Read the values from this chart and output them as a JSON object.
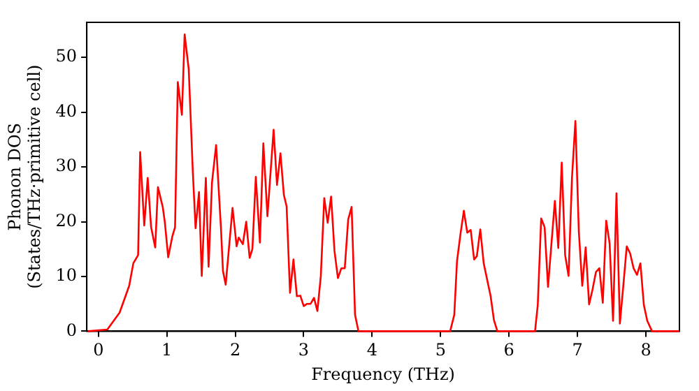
{
  "chart_data": {
    "type": "line",
    "xlabel": "Frequency (THz)",
    "ylabel": "Phonon DOS\n(States/THz·primitive cell)",
    "xlim": [
      -0.17,
      8.49
    ],
    "ylim": [
      0,
      56.4
    ],
    "xticks": [
      0,
      1,
      2,
      3,
      4,
      5,
      6,
      7,
      8
    ],
    "yticks": [
      0,
      10,
      20,
      30,
      40,
      50
    ],
    "grid": false,
    "legend": false,
    "marker": "none",
    "line_style": "solid",
    "series": [
      {
        "color": "#ff0000",
        "x": [
          -0.15,
          0.13,
          0.31,
          0.45,
          0.51,
          0.58,
          0.61,
          0.67,
          0.72,
          0.77,
          0.83,
          0.87,
          0.94,
          0.97,
          1.02,
          1.08,
          1.12,
          1.16,
          1.22,
          1.26,
          1.32,
          1.38,
          1.42,
          1.47,
          1.51,
          1.57,
          1.61,
          1.66,
          1.72,
          1.79,
          1.82,
          1.86,
          1.96,
          2.02,
          2.05,
          2.11,
          2.16,
          2.21,
          2.25,
          2.3,
          2.36,
          2.41,
          2.47,
          2.56,
          2.61,
          2.66,
          2.71,
          2.75,
          2.8,
          2.85,
          2.9,
          2.95,
          3.0,
          3.05,
          3.1,
          3.15,
          3.2,
          3.25,
          3.3,
          3.35,
          3.4,
          3.45,
          3.5,
          3.55,
          3.6,
          3.65,
          3.7,
          3.75,
          3.8,
          5.14,
          5.2,
          5.24,
          5.29,
          5.34,
          5.39,
          5.44,
          5.49,
          5.53,
          5.58,
          5.63,
          5.73,
          5.78,
          5.83,
          6.38,
          6.42,
          6.47,
          6.52,
          6.57,
          6.62,
          6.67,
          6.72,
          6.77,
          6.82,
          6.87,
          6.92,
          6.97,
          7.02,
          7.07,
          7.12,
          7.17,
          7.22,
          7.27,
          7.32,
          7.37,
          7.42,
          7.47,
          7.52,
          7.57,
          7.62,
          7.67,
          7.72,
          7.77,
          7.82,
          7.87,
          7.92,
          7.97,
          8.02,
          8.09,
          8.49
        ],
        "values": [
          0,
          0.3,
          3.4,
          8.3,
          12.4,
          13.9,
          32.7,
          19.3,
          28,
          19,
          15.3,
          26.3,
          22.7,
          20,
          13.5,
          17.3,
          19,
          45.5,
          39.5,
          54.2,
          47.8,
          29,
          18.8,
          25.4,
          10.1,
          28,
          11.8,
          27.2,
          34,
          19,
          11,
          8.5,
          22.5,
          15.5,
          17.1,
          15.9,
          20,
          13.4,
          15,
          28.2,
          16.2,
          34.3,
          21,
          36.8,
          26.7,
          32.5,
          24.9,
          22.8,
          7,
          13.1,
          6.4,
          6.5,
          4.6,
          5,
          5,
          6.1,
          3.7,
          10.1,
          24.3,
          19.8,
          24.6,
          14.6,
          9.7,
          11.5,
          11.5,
          20.4,
          22.7,
          3,
          0,
          0,
          3,
          12.8,
          17.7,
          22,
          18,
          18.5,
          13.1,
          13.7,
          18.6,
          12.4,
          6.5,
          2,
          0,
          0,
          4.8,
          20.6,
          19,
          8.1,
          16,
          23.8,
          15.2,
          30.8,
          13.9,
          10.1,
          28,
          38.4,
          18.2,
          8.3,
          15.3,
          4.9,
          7.6,
          10.8,
          11.5,
          5.2,
          20.2,
          16,
          1.9,
          25.2,
          1.4,
          8.3,
          15.5,
          14.2,
          11.5,
          10.3,
          12.4,
          4.8,
          1.9,
          0,
          0
        ]
      }
    ]
  }
}
